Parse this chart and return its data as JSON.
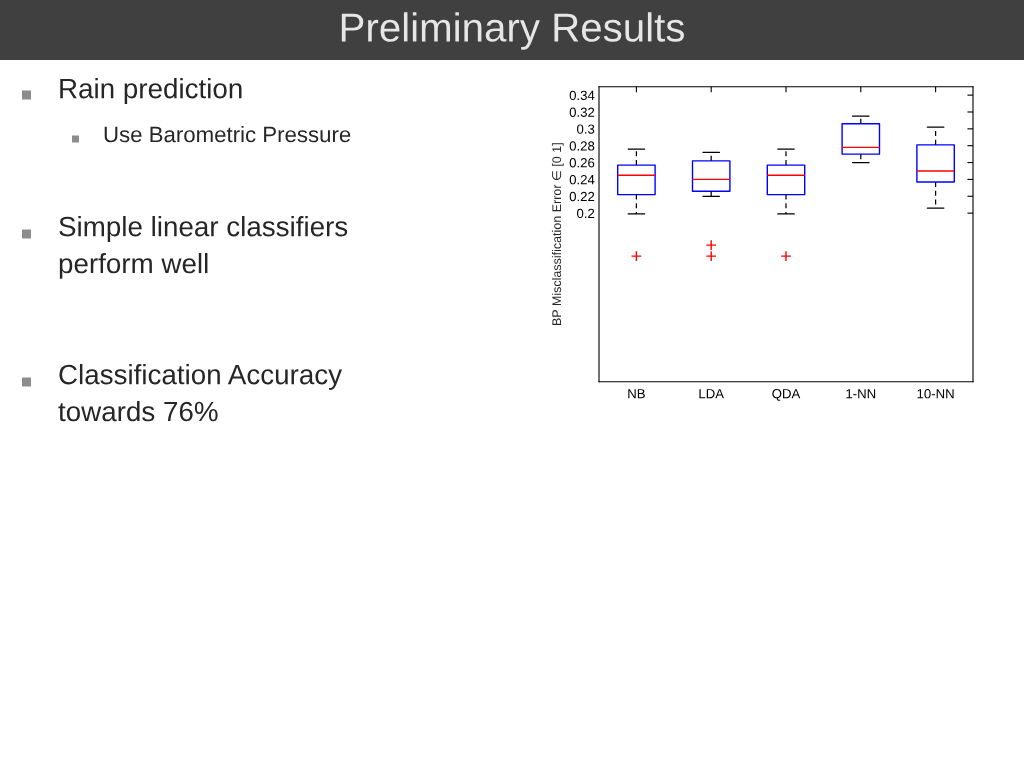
{
  "chart_data": {
    "type": "box",
    "title": "Preliminary Results",
    "ylabel": "BP Misclassification Error ∈ [0 1]",
    "categories": [
      "NB",
      "LDA",
      "QDA",
      "1-NN",
      "10-NN"
    ],
    "color": "#0000ff",
    "boxes": [
      {
        "low": 0.199,
        "q1": 0.222,
        "median": 0.245,
        "q3": 0.257,
        "high": 0.276,
        "outliers": [
          0.149
        ]
      },
      {
        "low": 0.22,
        "q1": 0.226,
        "median": 0.24,
        "q3": 0.262,
        "high": 0.272,
        "outliers": [
          0.162,
          0.149
        ]
      },
      {
        "low": 0.199,
        "q1": 0.222,
        "median": 0.245,
        "q3": 0.257,
        "high": 0.276,
        "outliers": [
          0.149
        ]
      },
      {
        "low": 0.26,
        "q1": 0.27,
        "median": 0.278,
        "q3": 0.306,
        "high": 0.315
      },
      {
        "low": 0.206,
        "q1": 0.237,
        "median": 0.25,
        "q3": 0.281,
        "high": 0.302
      }
    ],
    "ylim": [
      0,
      0.35
    ],
    "yticks": [
      0.2,
      0.22,
      0.24,
      0.26,
      0.28,
      0.3,
      0.32,
      0.34
    ],
    "annotations": [
      "Rain prediction",
      "Use Barometric Pressure",
      "Simple linear classifiers\nperform well",
      "Classification Accuracy\ntowards 76%"
    ]
  }
}
